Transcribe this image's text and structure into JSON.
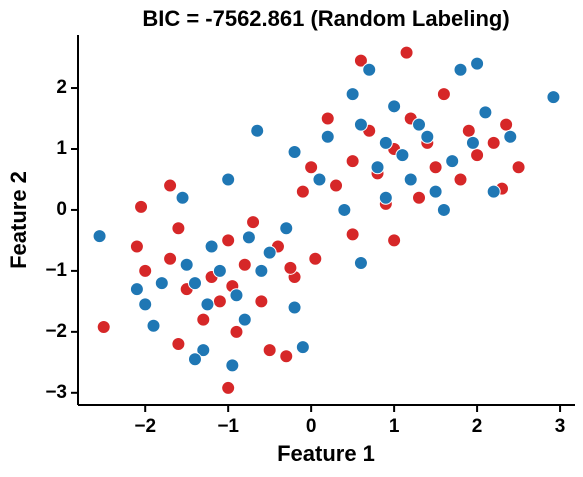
{
  "chart_data": {
    "type": "scatter",
    "title": "BIC = -7562.861 (Random Labeling)",
    "x_label": "Feature 1",
    "y_label": "Feature 2",
    "xlim": [
      -2.81,
      3.18
    ],
    "ylim": [
      -3.2,
      2.87
    ],
    "xticks": [
      {
        "value": -2,
        "label": "−2"
      },
      {
        "value": -1,
        "label": "−1"
      },
      0,
      1,
      2,
      3
    ],
    "yticks": [
      {
        "value": -3,
        "label": "−3"
      },
      {
        "value": -2,
        "label": "−2"
      },
      {
        "value": -1,
        "label": "−1"
      },
      0,
      1,
      2
    ],
    "series": [
      {
        "color": "#d62728",
        "x": [
          -1.2,
          -0.8,
          -1.5,
          -0.6,
          -1.0,
          -1.7,
          -0.4,
          -1.3,
          -0.9,
          -2.0,
          -2.1,
          -0.2,
          -0.7,
          -1.6,
          -0.3,
          -1.0,
          -2.5,
          -1.6,
          -0.5,
          -1.7,
          -0.25,
          0.05,
          -2.05,
          -1.1,
          -0.95,
          1.0,
          1.5,
          0.7,
          1.2,
          2.0,
          1.8,
          0.5,
          1.3,
          0.2,
          0.0,
          1.15,
          0.6,
          2.2,
          2.5,
          2.35,
          0.9,
          1.0,
          0.5,
          1.6,
          0.3,
          1.9,
          -0.1,
          2.3,
          1.4,
          0.8
        ],
        "values": [
          -1.1,
          -0.9,
          -1.3,
          -1.5,
          -0.5,
          -0.8,
          -0.6,
          -1.8,
          -2.0,
          -1.0,
          -0.6,
          -1.1,
          -0.2,
          -0.3,
          -2.4,
          -2.92,
          -1.92,
          -2.2,
          -2.3,
          0.4,
          -0.95,
          -0.8,
          0.05,
          -1.5,
          -1.25,
          1.0,
          0.7,
          1.3,
          1.5,
          0.9,
          0.5,
          0.8,
          0.2,
          1.5,
          0.7,
          2.58,
          2.45,
          1.1,
          0.7,
          1.4,
          0.1,
          -0.5,
          -0.4,
          1.9,
          0.4,
          1.3,
          0.3,
          0.35,
          1.1,
          0.6
        ]
      },
      {
        "color": "#1f77b4",
        "x": [
          -1.1,
          -1.4,
          -0.9,
          -1.2,
          -0.6,
          -1.8,
          -0.5,
          -1.3,
          -1.4,
          -0.95,
          -2.55,
          -2.0,
          -1.55,
          -1.0,
          -0.1,
          -0.65,
          -0.2,
          -1.9,
          -0.8,
          -1.5,
          -0.3,
          -2.1,
          0.6,
          -1.25,
          -0.75,
          1.1,
          1.4,
          0.9,
          1.7,
          0.6,
          1.2,
          2.0,
          2.92,
          0.7,
          1.8,
          1.0,
          0.2,
          -0.2,
          1.5,
          2.1,
          2.2,
          0.4,
          0.9,
          1.3,
          0.8,
          1.95,
          0.5,
          1.6,
          0.1,
          2.4
        ],
        "values": [
          -1.0,
          -1.2,
          -1.4,
          -0.6,
          -1.0,
          -1.2,
          -0.7,
          -2.3,
          -2.45,
          -2.55,
          -0.43,
          -1.55,
          0.2,
          0.5,
          -2.25,
          1.3,
          -1.6,
          -1.9,
          -1.8,
          -0.9,
          -0.3,
          -1.3,
          -0.87,
          -1.55,
          -0.45,
          0.9,
          1.2,
          1.1,
          0.8,
          1.4,
          0.5,
          2.4,
          1.85,
          2.3,
          2.3,
          1.7,
          1.2,
          0.95,
          0.3,
          1.6,
          0.3,
          0.0,
          0.2,
          1.4,
          0.7,
          1.1,
          1.9,
          0.0,
          0.5,
          1.2
        ]
      }
    ]
  }
}
